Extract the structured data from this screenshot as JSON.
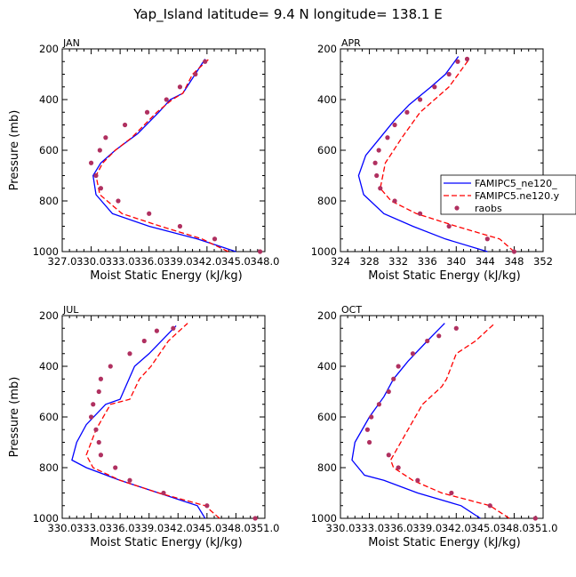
{
  "figure_title": "Yap_Island   latitude= 9.4 N longitude= 138.1 E",
  "colors": {
    "model1": "#0000ff",
    "model2": "#ff0000",
    "obs": "#b03060"
  },
  "legend": {
    "placement": "right of APR panel",
    "entries": [
      "FAMIPC5_ne120_",
      "FAMIPC5.ne120.y",
      "raobs"
    ]
  },
  "chart_data": [
    {
      "type": "line",
      "panel": "JAN",
      "xlabel": "Moist Static Energy (kJ/kg)",
      "ylabel": "Pressure (mb)",
      "xlim": [
        327.0,
        348.0
      ],
      "ylim": [
        1000,
        200
      ],
      "y_reversed": true,
      "xticks": [
        "327.0",
        "330.0",
        "333.0",
        "336.0",
        "339.0",
        "342.0",
        "345.0",
        "348.0"
      ],
      "yticks": [
        "200",
        "400",
        "600",
        "800",
        "1000"
      ],
      "series": [
        {
          "name": "FAMIPC5_ne120_",
          "style": "solid",
          "x": [
            345.0,
            341.0,
            336.0,
            332.2,
            330.5,
            330.2,
            331.0,
            332.5,
            334.8,
            337.0,
            338.2,
            339.5,
            341.8
          ],
          "y": [
            1000,
            950,
            900,
            850,
            775,
            700,
            650,
            600,
            535,
            450,
            400,
            375,
            240
          ]
        },
        {
          "name": "FAMIPC5.ne120.y",
          "style": "dashed",
          "x": [
            344.2,
            341.5,
            337.2,
            333.2,
            330.9,
            330.5,
            331.2,
            332.5,
            334.2,
            336.8,
            338.4,
            339.5,
            340.5,
            342.2
          ],
          "y": [
            1000,
            950,
            900,
            850,
            775,
            700,
            650,
            600,
            550,
            450,
            400,
            375,
            300,
            240
          ]
        },
        {
          "name": "raobs",
          "style": "markers",
          "x": [
            347.5,
            342.8,
            339.2,
            336.0,
            332.8,
            331.0,
            330.5,
            330.0,
            330.9,
            331.5,
            333.5,
            335.8,
            337.8,
            339.2,
            340.8,
            341.8
          ],
          "y": [
            1000,
            950,
            900,
            850,
            800,
            750,
            700,
            650,
            600,
            550,
            500,
            450,
            400,
            350,
            300,
            250
          ]
        }
      ]
    },
    {
      "type": "line",
      "panel": "APR",
      "xlabel": "Moist Static Energy (kJ/kg)",
      "ylabel": "",
      "xlim": [
        324,
        352
      ],
      "ylim": [
        1000,
        200
      ],
      "y_reversed": true,
      "xticks": [
        "324",
        "328",
        "332",
        "336",
        "340",
        "344",
        "348",
        "352"
      ],
      "yticks": [
        "200",
        "400",
        "600",
        "800",
        "1000"
      ],
      "series": [
        {
          "name": "FAMIPC5_ne120_",
          "style": "solid",
          "x": [
            344.3,
            338.5,
            334.0,
            330.0,
            327.2,
            326.5,
            327.5,
            329.5,
            331.5,
            333.5,
            336.5,
            338.5,
            340.3
          ],
          "y": [
            1000,
            950,
            900,
            850,
            775,
            700,
            620,
            550,
            480,
            420,
            350,
            300,
            230
          ]
        },
        {
          "name": "FAMIPC5.ne120.y",
          "style": "dashed",
          "x": [
            348.0,
            346.0,
            340.0,
            334.5,
            331.0,
            329.5,
            330.2,
            332.5,
            335.0,
            337.0,
            339.0,
            341.8
          ],
          "y": [
            1000,
            950,
            900,
            850,
            800,
            750,
            650,
            550,
            450,
            400,
            350,
            240
          ]
        },
        {
          "name": "raobs",
          "style": "markers",
          "x": [
            348.0,
            344.3,
            339.0,
            335.0,
            331.5,
            329.5,
            329.0,
            328.8,
            329.3,
            330.5,
            331.5,
            333.2,
            335.0,
            337.0,
            339.0,
            340.2,
            341.5
          ],
          "y": [
            1000,
            950,
            900,
            850,
            800,
            750,
            700,
            650,
            600,
            550,
            500,
            450,
            400,
            350,
            300,
            250,
            240
          ]
        }
      ]
    },
    {
      "type": "line",
      "panel": "JUL",
      "xlabel": "Moist Static Energy (kJ/kg)",
      "ylabel": "Pressure (mb)",
      "xlim": [
        330.0,
        351.0
      ],
      "ylim": [
        1000,
        200
      ],
      "y_reversed": true,
      "xticks": [
        "330.0",
        "333.0",
        "336.0",
        "339.0",
        "342.0",
        "345.0",
        "348.0",
        "351.0"
      ],
      "yticks": [
        "200",
        "400",
        "600",
        "800",
        "1000"
      ],
      "series": [
        {
          "name": "FAMIPC5_ne120_",
          "style": "solid",
          "x": [
            344.8,
            344.0,
            340.0,
            336.0,
            332.5,
            331.0,
            331.5,
            332.5,
            334.5,
            336.0,
            337.5,
            339.0,
            341.8
          ],
          "y": [
            1000,
            950,
            900,
            850,
            800,
            770,
            700,
            630,
            550,
            530,
            400,
            350,
            240
          ]
        },
        {
          "name": "FAMIPC5.ne120.y",
          "style": "dashed",
          "x": [
            346.3,
            344.8,
            340.0,
            336.0,
            333.2,
            332.5,
            333.5,
            335.0,
            337.0,
            338.0,
            339.2,
            341.0,
            343.0
          ],
          "y": [
            1000,
            950,
            900,
            850,
            800,
            750,
            650,
            550,
            530,
            450,
            400,
            300,
            230
          ]
        },
        {
          "name": "raobs",
          "style": "markers",
          "x": [
            350.0,
            345.0,
            340.5,
            337.0,
            335.5,
            334.0,
            333.8,
            333.5,
            333.0,
            333.2,
            333.8,
            334.0,
            335.0,
            337.0,
            338.5,
            339.8,
            341.5
          ],
          "y": [
            1000,
            950,
            900,
            850,
            800,
            750,
            700,
            650,
            600,
            550,
            500,
            450,
            400,
            350,
            300,
            260,
            250
          ]
        }
      ]
    },
    {
      "type": "line",
      "panel": "OCT",
      "xlabel": "Moist Static Energy (kJ/kg)",
      "ylabel": "",
      "xlim": [
        330.0,
        351.0
      ],
      "ylim": [
        1000,
        200
      ],
      "y_reversed": true,
      "xticks": [
        "330.0",
        "333.0",
        "336.0",
        "339.0",
        "342.0",
        "345.0",
        "348.0",
        "351.0"
      ],
      "yticks": [
        "200",
        "400",
        "600",
        "800",
        "1000"
      ],
      "series": [
        {
          "name": "FAMIPC5_ne120_",
          "style": "solid",
          "x": [
            344.5,
            342.5,
            338.0,
            334.5,
            332.5,
            331.2,
            331.5,
            333.0,
            334.5,
            335.5,
            337.0,
            339.0,
            340.8
          ],
          "y": [
            1000,
            950,
            900,
            850,
            830,
            770,
            700,
            600,
            520,
            450,
            380,
            300,
            230
          ]
        },
        {
          "name": "FAMIPC5.ne120.y",
          "style": "dashed",
          "x": [
            347.5,
            345.5,
            340.5,
            337.5,
            335.5,
            335.2,
            337.0,
            338.5,
            340.5,
            341.0,
            342.0,
            344.0,
            346.0
          ],
          "y": [
            1000,
            950,
            900,
            850,
            800,
            770,
            650,
            550,
            480,
            450,
            350,
            300,
            230
          ]
        },
        {
          "name": "raobs",
          "style": "markers",
          "x": [
            350.2,
            345.5,
            341.5,
            338.0,
            336.0,
            335.0,
            333.0,
            332.8,
            333.2,
            334.0,
            335.0,
            335.5,
            336.0,
            337.5,
            339.0,
            340.2,
            342.0
          ],
          "y": [
            1000,
            950,
            900,
            850,
            800,
            750,
            700,
            650,
            600,
            550,
            500,
            450,
            400,
            350,
            300,
            280,
            250
          ]
        }
      ]
    }
  ]
}
